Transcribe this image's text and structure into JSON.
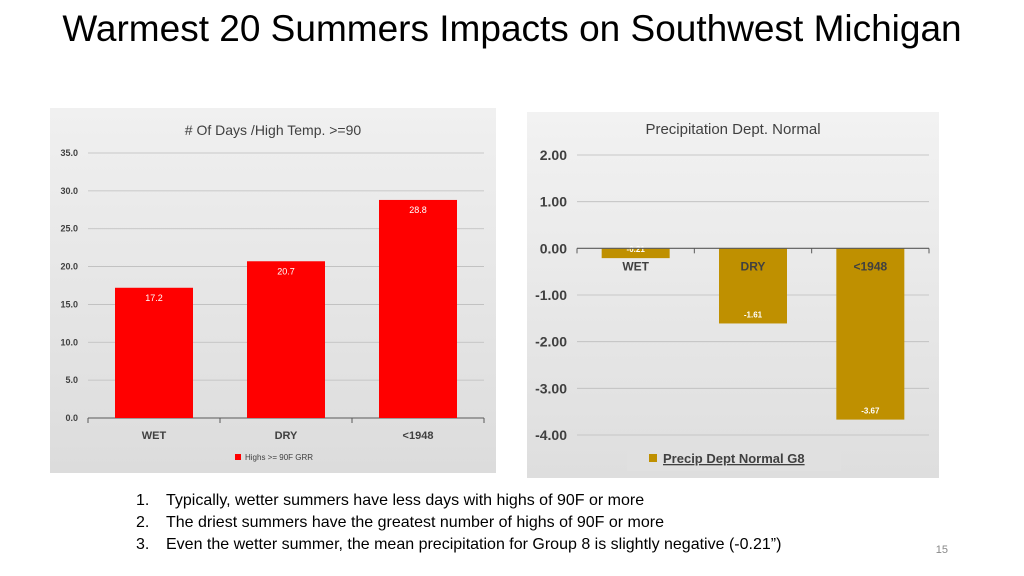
{
  "slide": {
    "title": "Warmest 20 Summers Impacts on Southwest Michigan",
    "notes": [
      {
        "num": "1.",
        "text": "Typically, wetter summers have less days with highs of 90F or more"
      },
      {
        "num": "2.",
        "text": "The driest summers have the greatest number of highs of 90F or more"
      },
      {
        "num": "3.",
        "text": "Even the wetter summer, the mean precipitation for Group 8 is slightly negative (-0.21”)"
      }
    ],
    "page_number": "15"
  },
  "chart_data": [
    {
      "type": "bar",
      "title": "# Of Days /High Temp. >=90",
      "categories": [
        "WET",
        "DRY",
        "<1948"
      ],
      "series": [
        {
          "name": "Highs >= 90F GRR",
          "values": [
            17.2,
            20.7,
            28.8
          ],
          "labels": [
            "17.2",
            "20.7",
            "28.8"
          ]
        }
      ],
      "yticks": [
        0,
        5,
        10,
        15,
        20,
        25,
        30,
        35
      ],
      "ytick_labels": [
        "0.0",
        "5.0",
        "10.0",
        "15.0",
        "20.0",
        "25.0",
        "30.0",
        "35.0"
      ],
      "ylim": [
        0,
        35
      ],
      "legend": "bottom",
      "colors": {
        "bar": "#ff0000",
        "grid": "#bdbdbd",
        "axis": "#595959",
        "label": "#ffffff"
      }
    },
    {
      "type": "bar",
      "title": "Precipitation Dept. Normal",
      "categories": [
        "WET",
        "DRY",
        "<1948"
      ],
      "series": [
        {
          "name": "Precip Dept Normal G8",
          "values": [
            -0.21,
            -1.61,
            -3.67
          ],
          "labels": [
            "-0.21",
            "-1.61",
            "-3.67"
          ]
        }
      ],
      "yticks": [
        2,
        1,
        0,
        -1,
        -2,
        -3,
        -4
      ],
      "ytick_labels": [
        "2.00",
        "1.00",
        "0.00",
        "-1.00",
        "-2.00",
        "-3.00",
        "-4.00"
      ],
      "ylim": [
        -4,
        2
      ],
      "legend": "bottom",
      "colors": {
        "bar": "#bf9000",
        "grid": "#bdbdbd",
        "axis": "#595959",
        "label": "#ffffff"
      }
    }
  ]
}
